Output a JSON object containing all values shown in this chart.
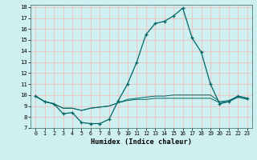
{
  "title": "",
  "xlabel": "Humidex (Indice chaleur)",
  "ylabel": "",
  "bg_color": "#cff0f0",
  "grid_color": "#e8c8c8",
  "line_color": "#006666",
  "x": [
    0,
    1,
    2,
    3,
    4,
    5,
    6,
    7,
    8,
    9,
    10,
    11,
    12,
    13,
    14,
    15,
    16,
    17,
    18,
    19,
    20,
    21,
    22,
    23
  ],
  "series1": [
    9.9,
    9.4,
    9.2,
    8.3,
    8.4,
    7.5,
    7.4,
    7.4,
    7.8,
    9.5,
    11.0,
    13.0,
    15.5,
    16.5,
    16.7,
    17.2,
    17.9,
    15.2,
    13.9,
    11.0,
    9.2,
    9.4,
    9.9,
    9.7
  ],
  "series2": [
    9.9,
    9.4,
    9.2,
    8.8,
    8.8,
    8.6,
    8.8,
    8.9,
    9.0,
    9.3,
    9.6,
    9.7,
    9.8,
    9.9,
    9.9,
    10.0,
    10.0,
    10.0,
    10.0,
    10.0,
    9.4,
    9.5,
    9.9,
    9.7
  ],
  "series3": [
    9.9,
    9.4,
    9.2,
    8.8,
    8.8,
    8.6,
    8.8,
    8.9,
    9.0,
    9.3,
    9.5,
    9.6,
    9.6,
    9.7,
    9.7,
    9.7,
    9.7,
    9.7,
    9.7,
    9.7,
    9.3,
    9.4,
    9.8,
    9.6
  ],
  "ylim": [
    7,
    18
  ],
  "xlim": [
    -0.5,
    23.5
  ],
  "yticks": [
    7,
    8,
    9,
    10,
    11,
    12,
    13,
    14,
    15,
    16,
    17,
    18
  ],
  "xticks": [
    0,
    1,
    2,
    3,
    4,
    5,
    6,
    7,
    8,
    9,
    10,
    11,
    12,
    13,
    14,
    15,
    16,
    17,
    18,
    19,
    20,
    21,
    22,
    23
  ]
}
